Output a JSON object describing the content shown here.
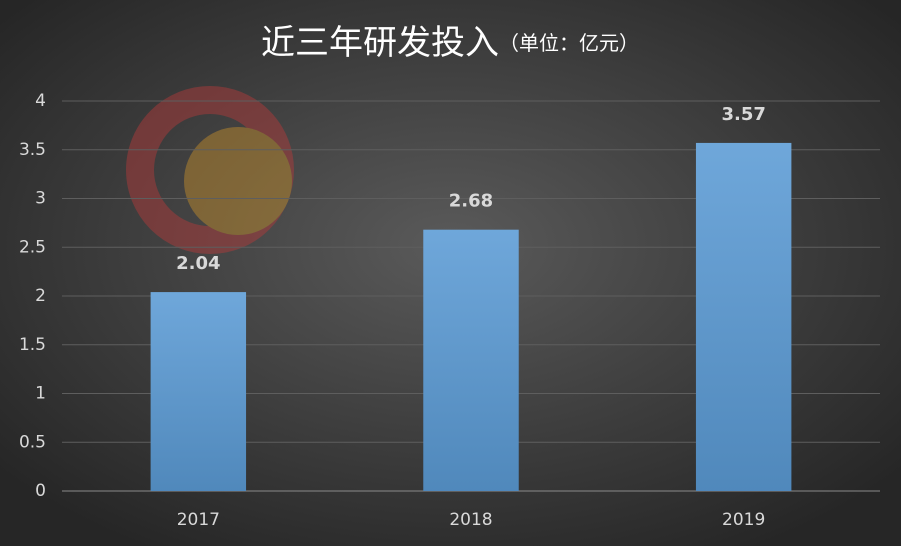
{
  "chart_data": {
    "type": "bar",
    "title": "近三年研发投入",
    "subtitle": "（单位：亿元）",
    "categories": [
      "2017",
      "2018",
      "2019"
    ],
    "values": [
      2.04,
      2.68,
      3.57
    ],
    "color": "#5b9bd5",
    "ylim": [
      0,
      4
    ],
    "yticks": [
      0,
      0.5,
      1,
      1.5,
      2,
      2.5,
      3,
      3.5,
      4
    ],
    "grid": true
  }
}
